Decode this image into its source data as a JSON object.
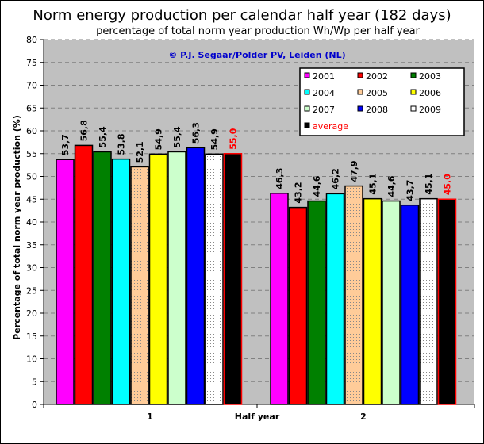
{
  "chart_data": {
    "type": "bar",
    "title": "Norm energy production per calendar half year (182 days)",
    "subtitle": "percentage of total norm year production Wh/Wp per half year",
    "annotation": "© P.J. Segaar/Polder PV, Leiden (NL)",
    "xlabel": "Half year",
    "ylabel": "Percentage of total norm year production (%)",
    "ylim": [
      0,
      80
    ],
    "yticks": [
      "0",
      "5",
      "10",
      "15",
      "20",
      "25",
      "30",
      "35",
      "40",
      "45",
      "50",
      "55",
      "60",
      "65",
      "70",
      "75",
      "80"
    ],
    "categories": [
      "1",
      "2"
    ],
    "grid": true,
    "legend_position": "top-right",
    "series": [
      {
        "name": "2001",
        "color": "#ff00ff",
        "pattern": "solid",
        "values": [
          53.7,
          46.3
        ],
        "labels": [
          "53,7",
          "46,3"
        ]
      },
      {
        "name": "2002",
        "color": "#ff0000",
        "pattern": "solid",
        "values": [
          56.8,
          43.2
        ],
        "labels": [
          "56,8",
          "43,2"
        ]
      },
      {
        "name": "2003",
        "color": "#008000",
        "pattern": "solid",
        "values": [
          55.4,
          44.6
        ],
        "labels": [
          "55,4",
          "44,6"
        ]
      },
      {
        "name": "2004",
        "color": "#00ffff",
        "pattern": "solid",
        "values": [
          53.8,
          46.2
        ],
        "labels": [
          "53,8",
          "46,2"
        ]
      },
      {
        "name": "2005",
        "color": "#ffcc99",
        "pattern": "dots",
        "values": [
          52.1,
          47.9
        ],
        "labels": [
          "52,1",
          "47,9"
        ]
      },
      {
        "name": "2006",
        "color": "#ffff00",
        "pattern": "solid",
        "values": [
          54.9,
          45.1
        ],
        "labels": [
          "54,9",
          "45,1"
        ]
      },
      {
        "name": "2007",
        "color": "#ccffcc",
        "pattern": "solid",
        "values": [
          55.4,
          44.6
        ],
        "labels": [
          "55,4",
          "44,6"
        ]
      },
      {
        "name": "2008",
        "color": "#0000ff",
        "pattern": "solid",
        "values": [
          56.3,
          43.7
        ],
        "labels": [
          "56,3",
          "43,7"
        ]
      },
      {
        "name": "2009",
        "color": "#ffffff",
        "pattern": "dots",
        "values": [
          54.9,
          45.1
        ],
        "labels": [
          "54,9",
          "45,1"
        ]
      },
      {
        "name": "average",
        "color": "#000000",
        "pattern": "solid",
        "values": [
          55.0,
          45.0
        ],
        "labels": [
          "55,0",
          "45,0"
        ],
        "label_color": "#ff0000"
      }
    ]
  }
}
